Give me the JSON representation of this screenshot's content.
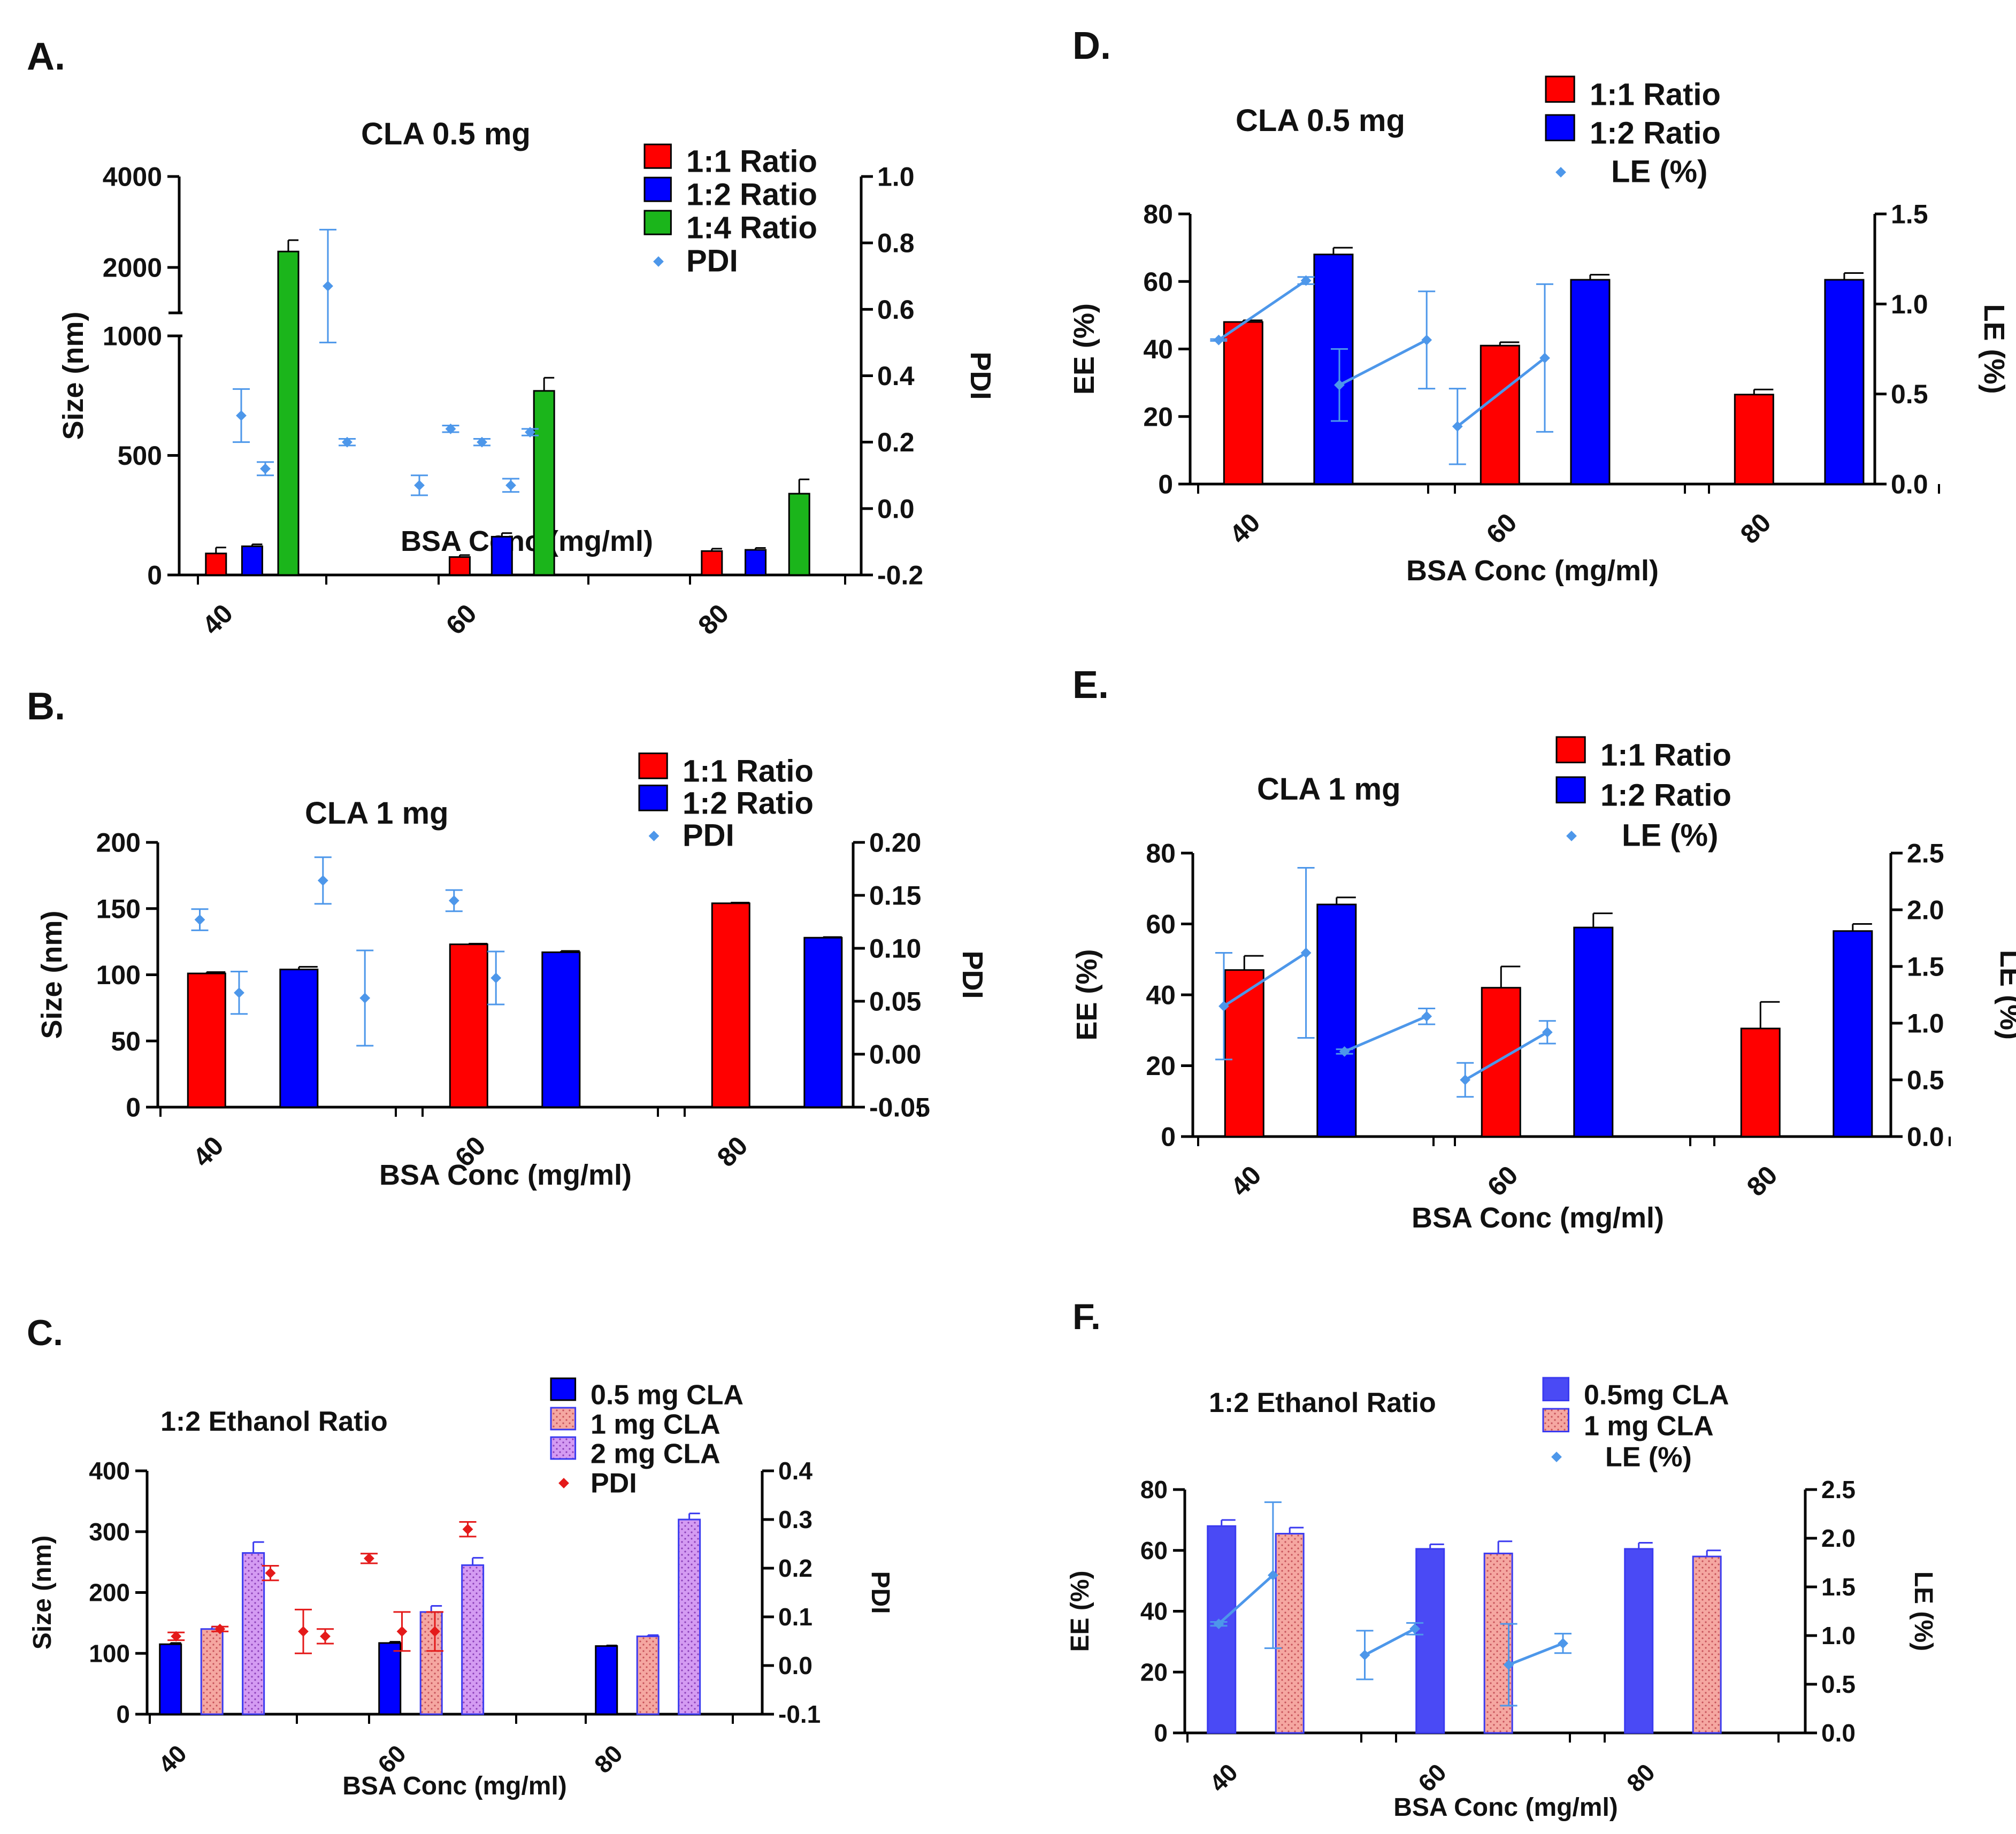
{
  "chart_data": [
    {
      "panel": "A.",
      "type": "bar",
      "title": "CLA 0.5 mg",
      "xlabel": "BSA Conc (mg/ml)",
      "ylabel": "Size (nm)",
      "y2label": "PDI",
      "categories": [
        "40",
        "60",
        "80"
      ],
      "broken_axis": true,
      "yticks_lower": [
        "0",
        "500",
        "1000"
      ],
      "yticks_upper": [
        "2000",
        "4000"
      ],
      "ylim_lower": [
        0,
        1000
      ],
      "ylim_upper": [
        1000,
        4000
      ],
      "y2lim": [
        -0.2,
        1.0
      ],
      "y2ticks": [
        "-0.2",
        "0.0",
        "0.2",
        "0.4",
        "0.6",
        "0.8",
        "1.0"
      ],
      "series": [
        {
          "name": "1:1 Ratio",
          "color": "#ff0000",
          "pattern": "solid",
          "values": [
            90,
            75,
            100
          ],
          "errors": [
            25,
            8,
            10
          ]
        },
        {
          "name": "1:2 Ratio",
          "color": "#0000ff",
          "pattern": "solid",
          "values": [
            120,
            160,
            105
          ],
          "errors": [
            8,
            15,
            8
          ]
        },
        {
          "name": "1:4 Ratio",
          "color": "#1bb51b",
          "pattern": "solid",
          "values": [
            2350,
            770,
            340
          ],
          "errors": [
            250,
            55,
            60
          ]
        }
      ],
      "pdi_series": {
        "name": "PDI",
        "color": "#4d97ea",
        "connected": false,
        "x": [
          0.18,
          0.28,
          0.54,
          0.62,
          0.92,
          1.05,
          1.18,
          1.3,
          1.38
        ],
        "values": [
          0.28,
          0.12,
          0.67,
          0.2,
          0.07,
          0.24,
          0.2,
          0.07,
          0.23
        ],
        "errors": [
          0.08,
          0.02,
          0.17,
          0.01,
          0.03,
          0.01,
          0.01,
          0.02,
          0.01
        ]
      }
    },
    {
      "panel": "B.",
      "type": "bar",
      "title": "CLA 1 mg",
      "xlabel": "BSA Conc (mg/ml)",
      "ylabel": "Size (nm)",
      "y2label": "PDI",
      "categories": [
        "40",
        "60",
        "80"
      ],
      "ylim": [
        0,
        200
      ],
      "yticks": [
        "0",
        "50",
        "100",
        "150",
        "200"
      ],
      "y2lim": [
        -0.05,
        0.2
      ],
      "y2ticks": [
        "-0.05",
        "0.00",
        "0.05",
        "0.10",
        "0.15",
        "0.20"
      ],
      "series": [
        {
          "name": "1:1 Ratio",
          "color": "#ff0000",
          "pattern": "solid",
          "values": [
            101,
            123,
            154
          ],
          "errors": [
            1,
            0.5,
            0.5
          ]
        },
        {
          "name": "1:2 Ratio",
          "color": "#0000ff",
          "pattern": "solid",
          "values": [
            104,
            117,
            128
          ],
          "errors": [
            2,
            1,
            0.5
          ]
        }
      ],
      "pdi_series": {
        "name": "PDI",
        "color": "#4d97ea",
        "connected": false,
        "x": [
          0.15,
          0.3,
          0.62,
          0.78,
          1.12,
          1.28
        ],
        "values": [
          0.127,
          0.058,
          0.164,
          0.053,
          0.145,
          0.072
        ],
        "errors": [
          0.01,
          0.02,
          0.022,
          0.045,
          0.01,
          0.025
        ]
      }
    },
    {
      "panel": "C.",
      "type": "bar",
      "title": "1:2 Ethanol Ratio",
      "xlabel": "BSA Conc (mg/ml)",
      "ylabel": "Size (nm)",
      "y2label": "PDI",
      "categories": [
        "40",
        "60",
        "80"
      ],
      "ylim": [
        0,
        400
      ],
      "yticks": [
        "0",
        "100",
        "200",
        "300",
        "400"
      ],
      "y2lim": [
        -0.1,
        0.4
      ],
      "y2ticks": [
        "-0.1",
        "0.0",
        "0.1",
        "0.2",
        "0.3",
        "0.4"
      ],
      "series": [
        {
          "name": "0.5 mg CLA",
          "color": "#0000ff",
          "pattern": "solid",
          "values": [
            115,
            117,
            112
          ],
          "errors": [
            2,
            2,
            1
          ]
        },
        {
          "name": "1 mg CLA",
          "color": "#f5a7a1",
          "pattern": "dots-pink",
          "values": [
            140,
            168,
            128
          ],
          "errors": [
            4,
            10,
            2
          ]
        },
        {
          "name": "2 mg CLA",
          "color": "#d49bf2",
          "pattern": "dots-purple",
          "values": [
            265,
            245,
            320
          ],
          "errors": [
            18,
            12,
            10
          ]
        }
      ],
      "pdi_series": {
        "name": "PDI",
        "color": "#e41a1a",
        "connected": false,
        "x": [
          0.12,
          0.32,
          0.55,
          0.7,
          0.8,
          1.0,
          1.15,
          1.3,
          1.45
        ],
        "values": [
          0.06,
          0.075,
          0.19,
          0.07,
          0.06,
          0.22,
          0.07,
          0.07,
          0.28
        ],
        "errors": [
          0.008,
          0.005,
          0.015,
          0.045,
          0.015,
          0.01,
          0.04,
          0.04,
          0.015
        ]
      }
    },
    {
      "panel": "D.",
      "type": "bar",
      "title": "CLA 0.5 mg",
      "xlabel": "BSA Conc (mg/ml)",
      "ylabel": "EE (%)",
      "y2label": "LE (%)",
      "categories": [
        "40",
        "60",
        "80"
      ],
      "ylim": [
        0,
        80
      ],
      "yticks": [
        "0",
        "20",
        "40",
        "60",
        "80"
      ],
      "y2lim": [
        0,
        1.5
      ],
      "y2ticks": [
        "0.0",
        "0.5",
        "1.0",
        "1.5"
      ],
      "series": [
        {
          "name": "1:1 Ratio",
          "color": "#ff0000",
          "pattern": "solid",
          "values": [
            48,
            41,
            26.5
          ],
          "errors": [
            0.5,
            1,
            1.5
          ]
        },
        {
          "name": "1:2 Ratio",
          "color": "#0000ff",
          "pattern": "solid",
          "values": [
            68,
            60.5,
            60.5
          ],
          "errors": [
            2,
            1.5,
            2
          ]
        }
      ],
      "pdi_series": {
        "name": "LE (%)",
        "color": "#4d97ea",
        "connected": true,
        "x": [
          0.08,
          0.42,
          0.55,
          0.89,
          1.01,
          1.35
        ],
        "values": [
          0.8,
          1.13,
          0.55,
          0.8,
          0.32,
          0.7
        ],
        "errors": [
          0.005,
          0.02,
          0.2,
          0.27,
          0.21,
          0.41
        ]
      }
    },
    {
      "panel": "E.",
      "type": "bar",
      "title": "CLA 1 mg",
      "xlabel": "BSA Conc (mg/ml)",
      "ylabel": "EE (%)",
      "y2label": "LE (%)",
      "categories": [
        "40",
        "60",
        "80"
      ],
      "ylim": [
        0,
        80
      ],
      "yticks": [
        "0",
        "20",
        "40",
        "60",
        "80"
      ],
      "y2lim": [
        0,
        2.5
      ],
      "y2ticks": [
        "0.0",
        "0.5",
        "1.0",
        "1.5",
        "2.0",
        "2.5"
      ],
      "series": [
        {
          "name": "1:1 Ratio",
          "color": "#ff0000",
          "pattern": "solid",
          "values": [
            47,
            42,
            30.5
          ],
          "errors": [
            4,
            6,
            7.5
          ]
        },
        {
          "name": "1:2 Ratio",
          "color": "#0000ff",
          "pattern": "solid",
          "values": [
            65.5,
            59,
            58
          ],
          "errors": [
            2,
            4,
            2
          ]
        }
      ],
      "pdi_series": {
        "name": "LE (%)",
        "color": "#4d97ea",
        "connected": true,
        "x": [
          0.1,
          0.42,
          0.57,
          0.89,
          1.04,
          1.36
        ],
        "values": [
          1.15,
          1.62,
          0.75,
          1.06,
          0.5,
          0.92
        ],
        "errors": [
          0.47,
          0.75,
          0.02,
          0.07,
          0.15,
          0.1
        ]
      }
    },
    {
      "panel": "F.",
      "type": "bar",
      "title": "1:2 Ethanol Ratio",
      "xlabel": "BSA Conc (mg/ml)",
      "ylabel": "EE (%)",
      "y2label": "LE (%)",
      "categories": [
        "40",
        "60",
        "80"
      ],
      "ylim": [
        0,
        80
      ],
      "yticks": [
        "0",
        "20",
        "40",
        "60",
        "80"
      ],
      "y2lim": [
        0,
        2.5
      ],
      "y2ticks": [
        "0.0",
        "0.5",
        "1.0",
        "1.5",
        "2.0",
        "2.5"
      ],
      "series": [
        {
          "name": "0.5mg CLA",
          "color": "#4a4af5",
          "pattern": "solid-light",
          "values": [
            68,
            60.5,
            60.5
          ],
          "errors": [
            2,
            1.5,
            2
          ]
        },
        {
          "name": "1 mg CLA",
          "color": "#f5a7a1",
          "pattern": "dots-pink",
          "values": [
            65.5,
            59,
            58
          ],
          "errors": [
            2,
            4,
            2
          ]
        }
      ],
      "pdi_series": {
        "name": "LE (%)",
        "color": "#4d97ea",
        "connected": true,
        "x": [
          0.15,
          0.41,
          0.85,
          1.09,
          1.54,
          1.8
        ],
        "values": [
          1.12,
          1.62,
          0.8,
          1.07,
          0.7,
          0.92
        ],
        "errors": [
          0.02,
          0.75,
          0.25,
          0.06,
          0.42,
          0.1
        ]
      }
    }
  ]
}
